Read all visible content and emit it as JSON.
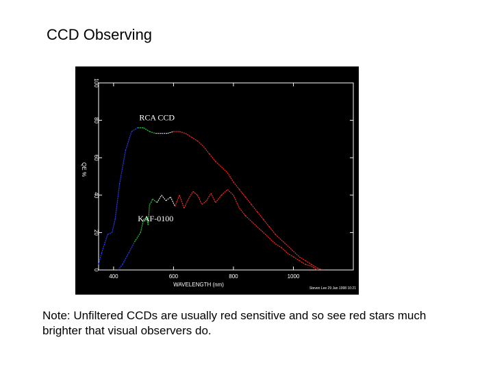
{
  "slide": {
    "title": "CCD Observing",
    "note": "Note:  Unfiltered CCDs are usually red sensitive and so see red stars much brighter that visual observers do."
  },
  "chart_data": {
    "type": "line",
    "xlabel": "WAVELENGTH (nm)",
    "ylabel": "QE %",
    "xlim": [
      350,
      1200
    ],
    "ylim": [
      0,
      100
    ],
    "x_ticks": [
      400,
      600,
      800,
      1000
    ],
    "y_ticks": [
      0,
      20,
      40,
      60,
      80,
      100
    ],
    "credit": "Steven Lee  29  Jan  1998  10:21",
    "grid": false,
    "background": "#000000",
    "series": [
      {
        "name": "RCA CCD",
        "colors": [
          "#2a3cff",
          "#2ecc40",
          "#e0e0e0",
          "#ff2a2a"
        ],
        "x": [
          350,
          360,
          380,
          395,
          405,
          420,
          440,
          460,
          480,
          500,
          520,
          540,
          560,
          580,
          600,
          620,
          640,
          660,
          680,
          700,
          720,
          740,
          760,
          780,
          800,
          820,
          840,
          860,
          880,
          900,
          920,
          940,
          960,
          980,
          1000,
          1020,
          1040,
          1060,
          1080,
          1100
        ],
        "y": [
          3,
          9,
          19,
          20,
          27,
          46,
          64,
          74,
          76,
          76,
          74,
          73,
          73,
          73,
          74,
          74,
          73,
          71,
          69,
          66,
          62,
          58,
          55,
          52,
          47,
          43,
          39,
          35,
          31,
          27,
          23,
          19,
          16,
          13,
          10,
          7,
          5,
          3,
          1,
          0
        ]
      },
      {
        "name": "KAF-0100",
        "colors": [
          "#2a3cff",
          "#2ecc40",
          "#e0e0e0",
          "#ff2a2a"
        ],
        "x": [
          415,
          430,
          450,
          470,
          490,
          500,
          510,
          515,
          520,
          525,
          530,
          545,
          560,
          575,
          590,
          605,
          620,
          635,
          650,
          665,
          680,
          695,
          710,
          725,
          740,
          760,
          780,
          800,
          820,
          840,
          860,
          880,
          900,
          920,
          940,
          960,
          980,
          1000,
          1020,
          1040,
          1060,
          1080
        ],
        "y": [
          0,
          3,
          9,
          15,
          20,
          27,
          28,
          24,
          35,
          36,
          38,
          36,
          40,
          37,
          39,
          34,
          40,
          33,
          38,
          42,
          40,
          35,
          37,
          41,
          36,
          40,
          43,
          40,
          33,
          29,
          26,
          23,
          20,
          17,
          14,
          12,
          9,
          7,
          5,
          3,
          2,
          0
        ]
      }
    ],
    "annotations": [
      {
        "text": "RCA CCD",
        "x": 600,
        "y": 80
      },
      {
        "text": "KAF-0100",
        "x": 595,
        "y": 26
      }
    ]
  }
}
